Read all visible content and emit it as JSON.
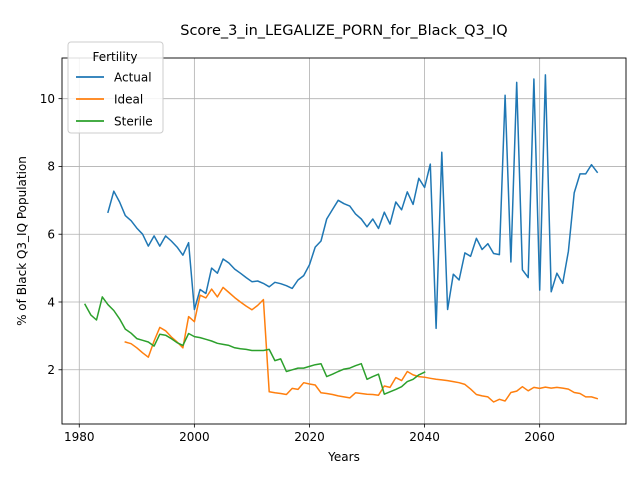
{
  "chart_data": {
    "type": "line",
    "title": "Score_3_in_LEGALIZE_PORN_for_Black_Q3_IQ",
    "xlabel": "Years",
    "ylabel": "% of Black Q3_IQ Population",
    "xlim": [
      1977,
      2075
    ],
    "ylim": [
      0.4,
      11.2
    ],
    "xticks": [
      1980,
      2000,
      2020,
      2040,
      2060
    ],
    "yticks": [
      2,
      4,
      6,
      8,
      10
    ],
    "grid": true,
    "legend": {
      "title": "Fertility",
      "position": "upper-left"
    },
    "series": [
      {
        "name": "Actual",
        "color": "#1f77b4",
        "points": [
          [
            1985,
            6.65
          ],
          [
            1986,
            7.27
          ],
          [
            1987,
            6.95
          ],
          [
            1988,
            6.55
          ],
          [
            1989,
            6.4
          ],
          [
            1990,
            6.18
          ],
          [
            1991,
            6.0
          ],
          [
            1992,
            5.65
          ],
          [
            1993,
            5.95
          ],
          [
            1994,
            5.65
          ],
          [
            1995,
            5.95
          ],
          [
            1996,
            5.8
          ],
          [
            1997,
            5.62
          ],
          [
            1998,
            5.38
          ],
          [
            1999,
            5.75
          ],
          [
            2000,
            3.78
          ],
          [
            2001,
            4.37
          ],
          [
            2002,
            4.25
          ],
          [
            2003,
            5.0
          ],
          [
            2004,
            4.85
          ],
          [
            2005,
            5.27
          ],
          [
            2006,
            5.15
          ],
          [
            2007,
            4.97
          ],
          [
            2008,
            4.85
          ],
          [
            2009,
            4.72
          ],
          [
            2010,
            4.6
          ],
          [
            2011,
            4.62
          ],
          [
            2012,
            4.55
          ],
          [
            2013,
            4.45
          ],
          [
            2014,
            4.58
          ],
          [
            2015,
            4.54
          ],
          [
            2016,
            4.48
          ],
          [
            2017,
            4.4
          ],
          [
            2018,
            4.65
          ],
          [
            2019,
            4.78
          ],
          [
            2020,
            5.1
          ],
          [
            2021,
            5.62
          ],
          [
            2022,
            5.8
          ],
          [
            2023,
            6.45
          ],
          [
            2024,
            6.73
          ],
          [
            2025,
            7.0
          ],
          [
            2026,
            6.9
          ],
          [
            2027,
            6.83
          ],
          [
            2028,
            6.6
          ],
          [
            2029,
            6.45
          ],
          [
            2030,
            6.22
          ],
          [
            2031,
            6.45
          ],
          [
            2032,
            6.17
          ],
          [
            2033,
            6.65
          ],
          [
            2034,
            6.3
          ],
          [
            2035,
            6.95
          ],
          [
            2036,
            6.72
          ],
          [
            2037,
            7.25
          ],
          [
            2038,
            6.88
          ],
          [
            2039,
            7.65
          ],
          [
            2040,
            7.38
          ],
          [
            2041,
            8.07
          ],
          [
            2042,
            3.22
          ],
          [
            2043,
            8.42
          ],
          [
            2044,
            3.78
          ],
          [
            2045,
            4.82
          ],
          [
            2046,
            4.65
          ],
          [
            2047,
            5.45
          ],
          [
            2048,
            5.35
          ],
          [
            2049,
            5.88
          ],
          [
            2050,
            5.55
          ],
          [
            2051,
            5.72
          ],
          [
            2052,
            5.43
          ],
          [
            2053,
            5.4
          ],
          [
            2054,
            10.1
          ],
          [
            2055,
            5.18
          ],
          [
            2056,
            10.48
          ],
          [
            2057,
            4.95
          ],
          [
            2058,
            4.72
          ],
          [
            2059,
            10.58
          ],
          [
            2060,
            4.35
          ],
          [
            2061,
            10.7
          ],
          [
            2062,
            4.3
          ],
          [
            2063,
            4.85
          ],
          [
            2064,
            4.55
          ],
          [
            2065,
            5.5
          ],
          [
            2066,
            7.22
          ],
          [
            2067,
            7.78
          ],
          [
            2068,
            7.78
          ],
          [
            2069,
            8.05
          ],
          [
            2070,
            7.83
          ]
        ]
      },
      {
        "name": "Ideal",
        "color": "#ff7f0e",
        "points": [
          [
            1988,
            2.82
          ],
          [
            1989,
            2.77
          ],
          [
            1990,
            2.65
          ],
          [
            1991,
            2.5
          ],
          [
            1992,
            2.37
          ],
          [
            1993,
            2.85
          ],
          [
            1994,
            3.25
          ],
          [
            1995,
            3.15
          ],
          [
            1996,
            2.97
          ],
          [
            1997,
            2.82
          ],
          [
            1998,
            2.65
          ],
          [
            1999,
            3.57
          ],
          [
            2000,
            3.42
          ],
          [
            2001,
            4.2
          ],
          [
            2002,
            4.12
          ],
          [
            2003,
            4.38
          ],
          [
            2004,
            4.15
          ],
          [
            2005,
            4.43
          ],
          [
            2006,
            4.28
          ],
          [
            2007,
            4.13
          ],
          [
            2008,
            4.0
          ],
          [
            2009,
            3.88
          ],
          [
            2010,
            3.77
          ],
          [
            2011,
            3.9
          ],
          [
            2012,
            4.07
          ],
          [
            2013,
            1.35
          ],
          [
            2014,
            1.32
          ],
          [
            2015,
            1.3
          ],
          [
            2016,
            1.27
          ],
          [
            2017,
            1.45
          ],
          [
            2018,
            1.42
          ],
          [
            2019,
            1.62
          ],
          [
            2020,
            1.58
          ],
          [
            2021,
            1.55
          ],
          [
            2022,
            1.32
          ],
          [
            2023,
            1.3
          ],
          [
            2024,
            1.27
          ],
          [
            2025,
            1.23
          ],
          [
            2026,
            1.2
          ],
          [
            2027,
            1.17
          ],
          [
            2028,
            1.32
          ],
          [
            2029,
            1.3
          ],
          [
            2030,
            1.28
          ],
          [
            2031,
            1.27
          ],
          [
            2032,
            1.25
          ],
          [
            2033,
            1.52
          ],
          [
            2034,
            1.48
          ],
          [
            2035,
            1.77
          ],
          [
            2036,
            1.68
          ],
          [
            2037,
            1.95
          ],
          [
            2038,
            1.85
          ],
          [
            2039,
            1.8
          ],
          [
            2040,
            1.78
          ],
          [
            2041,
            1.75
          ],
          [
            2042,
            1.72
          ],
          [
            2043,
            1.7
          ],
          [
            2044,
            1.68
          ],
          [
            2045,
            1.65
          ],
          [
            2046,
            1.62
          ],
          [
            2047,
            1.57
          ],
          [
            2048,
            1.43
          ],
          [
            2049,
            1.27
          ],
          [
            2050,
            1.23
          ],
          [
            2051,
            1.2
          ],
          [
            2052,
            1.05
          ],
          [
            2053,
            1.13
          ],
          [
            2054,
            1.08
          ],
          [
            2055,
            1.33
          ],
          [
            2056,
            1.37
          ],
          [
            2057,
            1.5
          ],
          [
            2058,
            1.38
          ],
          [
            2059,
            1.48
          ],
          [
            2060,
            1.45
          ],
          [
            2061,
            1.49
          ],
          [
            2062,
            1.46
          ],
          [
            2063,
            1.48
          ],
          [
            2064,
            1.46
          ],
          [
            2065,
            1.43
          ],
          [
            2066,
            1.33
          ],
          [
            2067,
            1.3
          ],
          [
            2068,
            1.2
          ],
          [
            2069,
            1.2
          ],
          [
            2070,
            1.15
          ]
        ]
      },
      {
        "name": "Sterile",
        "color": "#2ca02c",
        "points": [
          [
            1981,
            3.93
          ],
          [
            1982,
            3.62
          ],
          [
            1983,
            3.47
          ],
          [
            1984,
            4.15
          ],
          [
            1985,
            3.92
          ],
          [
            1986,
            3.75
          ],
          [
            1987,
            3.5
          ],
          [
            1988,
            3.2
          ],
          [
            1989,
            3.08
          ],
          [
            1990,
            2.92
          ],
          [
            1991,
            2.87
          ],
          [
            1992,
            2.82
          ],
          [
            1993,
            2.7
          ],
          [
            1994,
            3.05
          ],
          [
            1995,
            3.02
          ],
          [
            1996,
            2.92
          ],
          [
            1997,
            2.8
          ],
          [
            1998,
            2.72
          ],
          [
            1999,
            3.07
          ],
          [
            2000,
            2.98
          ],
          [
            2001,
            2.95
          ],
          [
            2002,
            2.9
          ],
          [
            2003,
            2.85
          ],
          [
            2004,
            2.78
          ],
          [
            2005,
            2.75
          ],
          [
            2006,
            2.72
          ],
          [
            2007,
            2.65
          ],
          [
            2008,
            2.62
          ],
          [
            2009,
            2.6
          ],
          [
            2010,
            2.57
          ],
          [
            2011,
            2.57
          ],
          [
            2012,
            2.57
          ],
          [
            2013,
            2.6
          ],
          [
            2014,
            2.27
          ],
          [
            2015,
            2.32
          ],
          [
            2016,
            1.95
          ],
          [
            2017,
            2.0
          ],
          [
            2018,
            2.05
          ],
          [
            2019,
            2.05
          ],
          [
            2020,
            2.1
          ],
          [
            2021,
            2.15
          ],
          [
            2022,
            2.18
          ],
          [
            2023,
            1.8
          ],
          [
            2024,
            1.87
          ],
          [
            2025,
            1.95
          ],
          [
            2026,
            2.02
          ],
          [
            2027,
            2.05
          ],
          [
            2028,
            2.12
          ],
          [
            2029,
            2.18
          ],
          [
            2030,
            1.72
          ],
          [
            2031,
            1.8
          ],
          [
            2032,
            1.87
          ],
          [
            2033,
            1.28
          ],
          [
            2034,
            1.35
          ],
          [
            2035,
            1.42
          ],
          [
            2036,
            1.5
          ],
          [
            2037,
            1.65
          ],
          [
            2038,
            1.72
          ],
          [
            2039,
            1.85
          ],
          [
            2040,
            1.93
          ]
        ]
      }
    ]
  }
}
